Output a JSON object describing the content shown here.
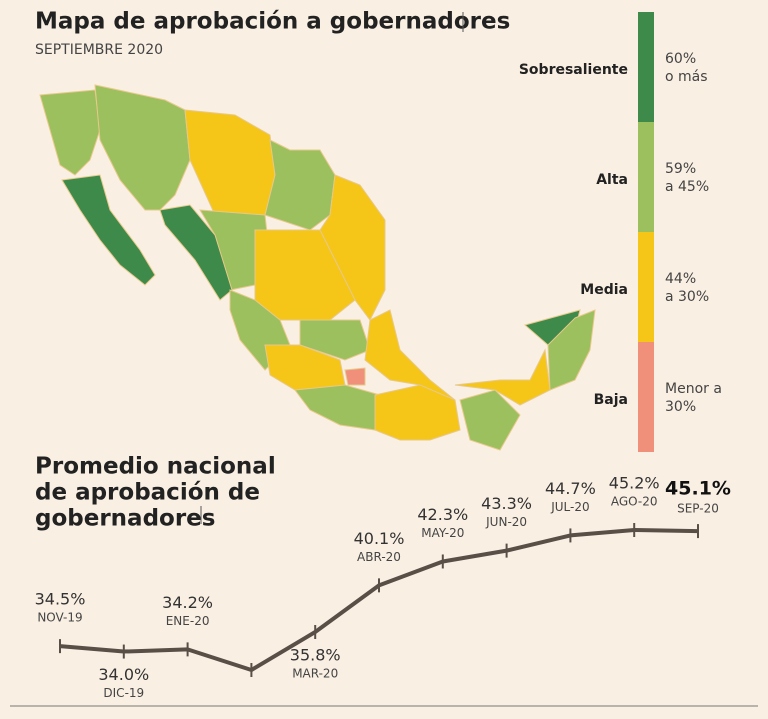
{
  "map": {
    "title": "Mapa de aprobación a gobernadores",
    "subtitle": "SEPTIEMBRE 2020",
    "legend": [
      {
        "label": "Sobresaliente",
        "color": "#3e8a4a",
        "range": [
          "60%",
          "o más"
        ]
      },
      {
        "label": "Alta",
        "color": "#9cc05e",
        "range": [
          "59%",
          "a 45%"
        ]
      },
      {
        "label": "Media",
        "color": "#f5c518",
        "range": [
          "44%",
          "a 30%"
        ]
      },
      {
        "label": "Baja",
        "color": "#f0907a",
        "range": [
          "Menor a",
          "30%"
        ]
      }
    ]
  },
  "chart_data": {
    "type": "line",
    "title": [
      "Promedio nacional",
      "de aprobación de",
      "gobernadores"
    ],
    "color": "#5a4f47",
    "categories": [
      "NOV-19",
      "DIC-19",
      "ENE-20",
      null,
      "MAR-20",
      "ABR-20",
      "MAY-20",
      "JUN-20",
      "JUL-20",
      "AGO-20",
      "SEP-20"
    ],
    "values": [
      34.5,
      34.0,
      34.2,
      32.3,
      35.8,
      40.1,
      42.3,
      43.3,
      44.7,
      45.2,
      45.1
    ],
    "value_labels": [
      "34.5%",
      "34.0%",
      "34.2%",
      null,
      "35.8%",
      "40.1%",
      "42.3%",
      "43.3%",
      "44.7%",
      "45.2%",
      "45.1%"
    ]
  }
}
